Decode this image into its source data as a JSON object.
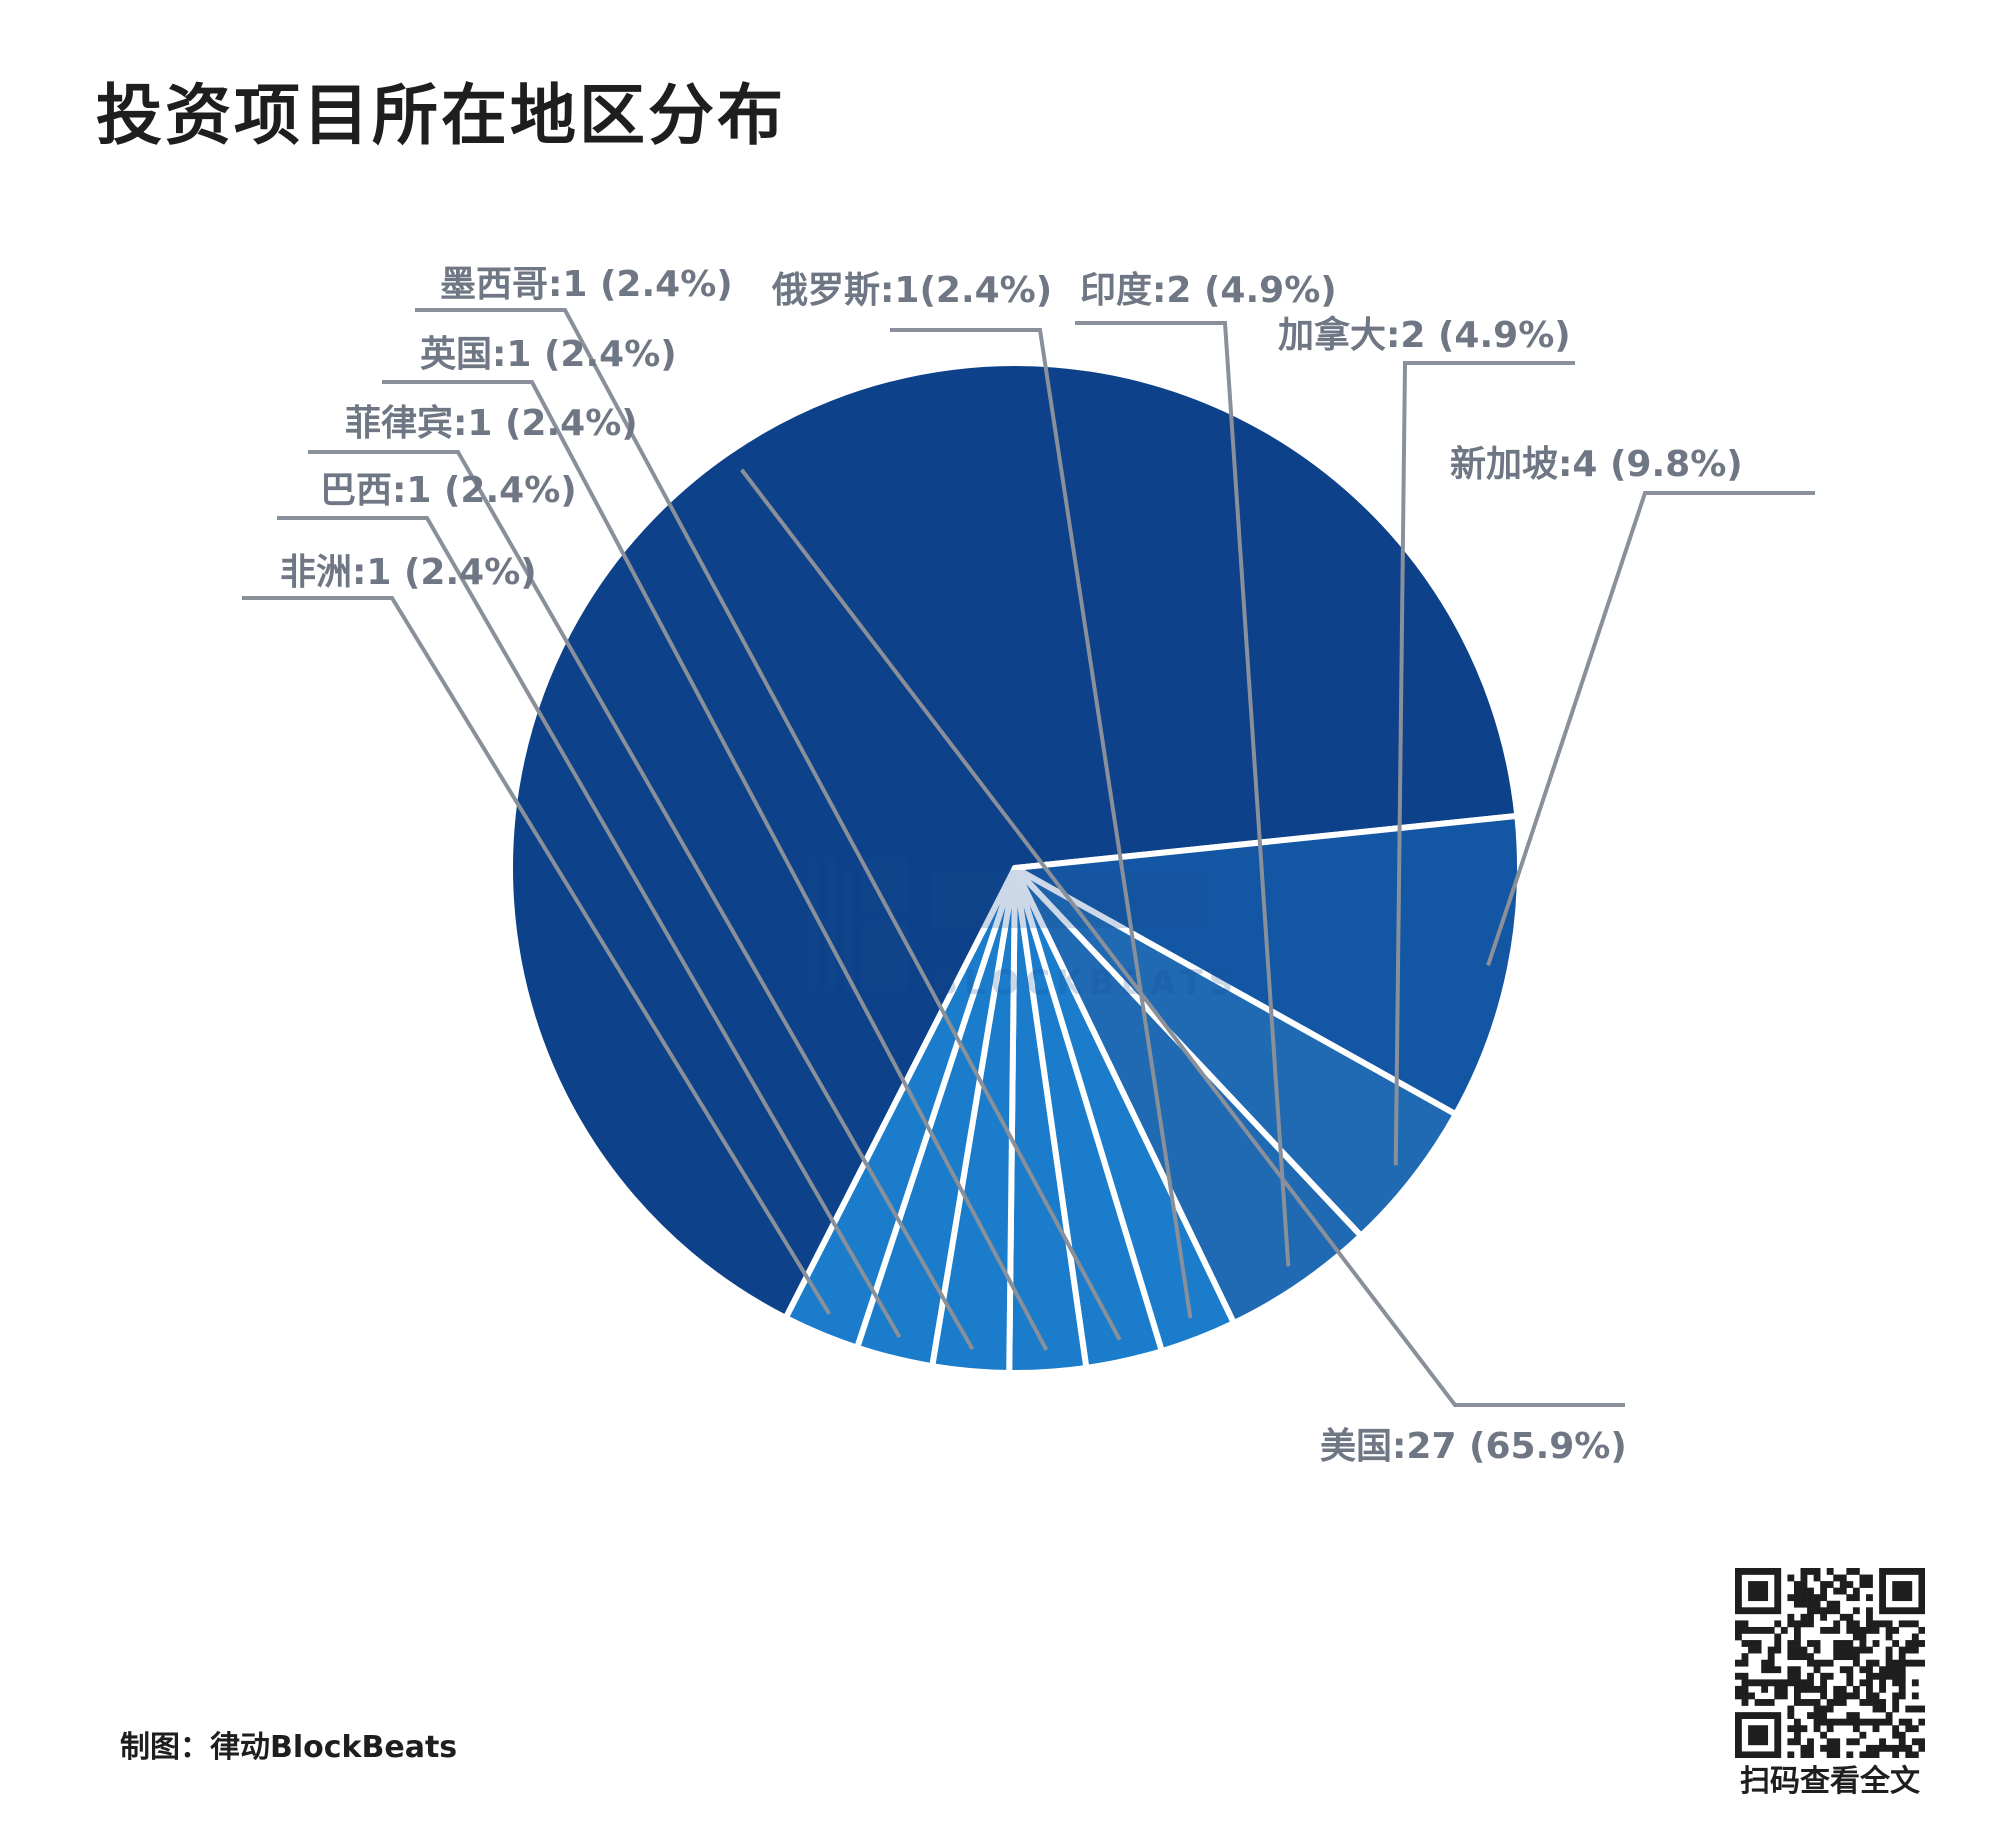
{
  "title": "投资项目所在地区分布",
  "credit": "制图：律动BlockBeats",
  "qr_caption": "扫码查看全文",
  "watermark": {
    "text": "BLOCKBEATS",
    "icon": "blockbeats-logo-icon",
    "color": "#1a4f95"
  },
  "chart_data": {
    "type": "pie",
    "title": "投资项目所在地区分布",
    "slices": [
      {
        "name": "美国",
        "value": 27,
        "percent": 65.9,
        "label": "美国:27 (65.9%)",
        "color": "#0d4189"
      },
      {
        "name": "新加坡",
        "value": 4,
        "percent": 9.8,
        "label": "新加坡:4 (9.8%)",
        "color": "#1356a3"
      },
      {
        "name": "加拿大",
        "value": 2,
        "percent": 4.9,
        "label": "加拿大:2 (4.9%)",
        "color": "#1f6ab3"
      },
      {
        "name": "印度",
        "value": 2,
        "percent": 4.9,
        "label": "印度:2 (4.9%)",
        "color": "#1f6ab3"
      },
      {
        "name": "俄罗斯",
        "value": 1,
        "percent": 2.4,
        "label": "俄罗斯:1(2.4%)",
        "color": "#1b7ccc"
      },
      {
        "name": "墨西哥",
        "value": 1,
        "percent": 2.4,
        "label": "墨西哥:1 (2.4%)",
        "color": "#1b7ccc"
      },
      {
        "name": "英国",
        "value": 1,
        "percent": 2.4,
        "label": "英国:1 (2.4%)",
        "color": "#1b7ccc"
      },
      {
        "name": "菲律宾",
        "value": 1,
        "percent": 2.4,
        "label": "菲律宾:1 (2.4%)",
        "color": "#1b7ccc"
      },
      {
        "name": "巴西",
        "value": 1,
        "percent": 2.4,
        "label": "巴西:1 (2.4%)",
        "color": "#1b7ccc"
      },
      {
        "name": "非洲",
        "value": 1,
        "percent": 2.4,
        "label": "非洲:1 (2.4%)",
        "color": "#1b7ccc"
      }
    ],
    "legend": "none"
  }
}
